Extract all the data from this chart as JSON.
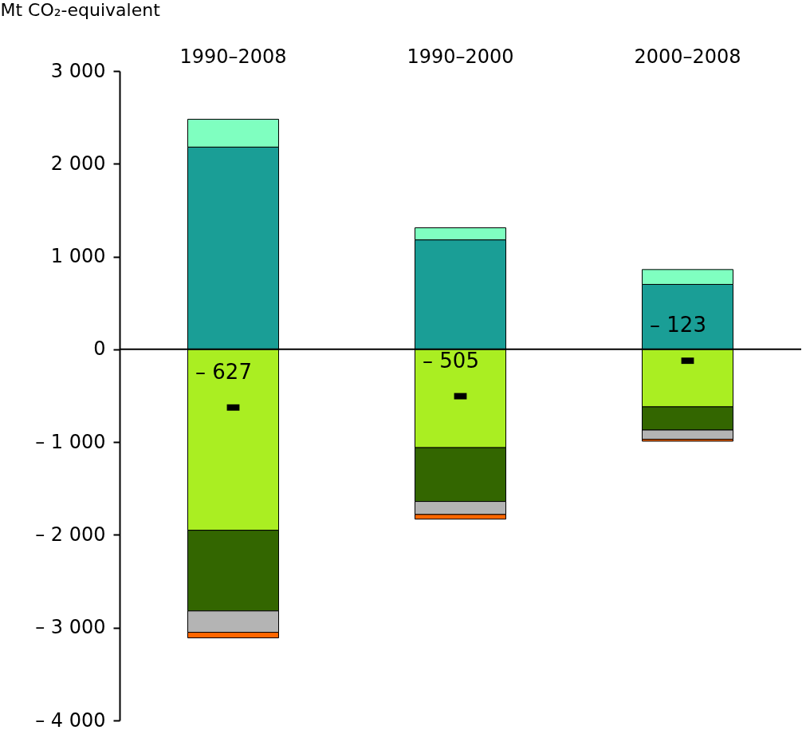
{
  "chart_data": {
    "type": "bar",
    "stacked": true,
    "ylabel": "Mt CO₂-equivalent",
    "categories": [
      "1990–2008",
      "1990–2000",
      "2000–2008"
    ],
    "series": [
      {
        "color": "#1a9e96",
        "values": [
          2180,
          1180,
          700
        ]
      },
      {
        "color": "#7fffc0",
        "values": [
          300,
          130,
          160
        ]
      },
      {
        "color": "#aaee22",
        "values": [
          -1950,
          -1060,
          -620
        ]
      },
      {
        "color": "#336600",
        "values": [
          -870,
          -580,
          -250
        ]
      },
      {
        "color": "#b4b4b4",
        "values": [
          -230,
          -140,
          -100
        ]
      },
      {
        "color": "#ff6600",
        "values": [
          -60,
          -50,
          -20
        ]
      },
      {
        "type": "scatter",
        "color": "#000000",
        "values": [
          -627,
          -505,
          -123
        ],
        "value_labels": [
          "– 627",
          "– 505",
          "– 123"
        ]
      }
    ],
    "ylim": [
      -4000,
      3000
    ],
    "yticks": [
      {
        "value": -4000,
        "label": "– 4 000"
      },
      {
        "value": -3000,
        "label": "– 3 000"
      },
      {
        "value": -2000,
        "label": "– 2 000"
      },
      {
        "value": -1000,
        "label": "– 1 000"
      },
      0,
      {
        "value": 1000,
        "label": "1 000"
      },
      {
        "value": 2000,
        "label": "2 000"
      },
      {
        "value": 3000,
        "label": "3 000"
      }
    ],
    "ref_lines": [
      {
        "axis": "y",
        "value": 0,
        "color": "#000000"
      }
    ],
    "grid": false,
    "legend": false
  }
}
